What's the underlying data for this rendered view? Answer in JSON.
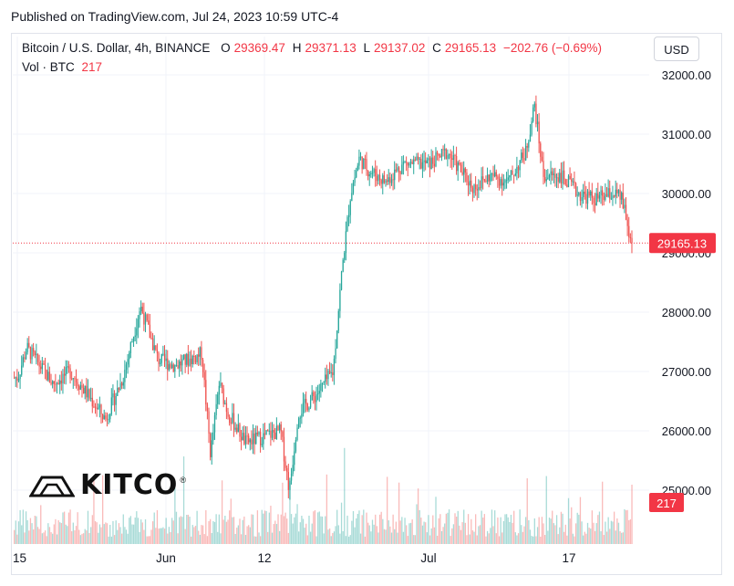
{
  "header": {
    "published": "Published on TradingView.com, Jul 24, 2023 10:59 UTC-4"
  },
  "legend": {
    "symbol": "Bitcoin / U.S. Dollar, 4h, BINANCE",
    "open_label": "O",
    "open": "29369.47",
    "high_label": "H",
    "high": "29371.13",
    "low_label": "L",
    "low": "29137.02",
    "close_label": "C",
    "close": "29165.13",
    "change": "−202.76 (−0.69%)",
    "vol_label": "Vol · BTC",
    "vol_value": "217"
  },
  "currency_button": "USD",
  "logo": {
    "text": "KITCO",
    "reg": "®"
  },
  "colors": {
    "up": "#26a69a",
    "down": "#ef5350",
    "price_line": "#f23645",
    "grid": "#f0f3fa"
  },
  "chart_data": {
    "type": "candlestick",
    "timeframe": "4h",
    "x_ticks": [
      "15",
      "Jun",
      "12",
      "Jul",
      "17"
    ],
    "y_ticks": [
      "25000.00",
      "26000.00",
      "27000.00",
      "28000.00",
      "29000.00",
      "30000.00",
      "31000.00",
      "32000.00"
    ],
    "ylim": [
      24700,
      32200
    ],
    "last_price": "29165.13",
    "last_volume": "217",
    "price_path": [
      {
        "date": "May 15",
        "price": 26900
      },
      {
        "date": "May 16",
        "price": 27400
      },
      {
        "date": "May 19",
        "price": 26800
      },
      {
        "date": "May 21",
        "price": 27000
      },
      {
        "date": "May 24",
        "price": 26400
      },
      {
        "date": "May 25",
        "price": 26200
      },
      {
        "date": "May 27",
        "price": 26900
      },
      {
        "date": "May 29",
        "price": 28100
      },
      {
        "date": "May 31",
        "price": 27200
      },
      {
        "date": "Jun 2",
        "price": 27100
      },
      {
        "date": "Jun 5",
        "price": 27300
      },
      {
        "date": "Jun 6",
        "price": 25600
      },
      {
        "date": "Jun 7",
        "price": 26800
      },
      {
        "date": "Jun 8",
        "price": 26300
      },
      {
        "date": "Jun 10",
        "price": 25800
      },
      {
        "date": "Jun 12",
        "price": 25900
      },
      {
        "date": "Jun 14",
        "price": 26000
      },
      {
        "date": "Jun 15",
        "price": 25000
      },
      {
        "date": "Jun 16",
        "price": 26300
      },
      {
        "date": "Jun 18",
        "price": 26600
      },
      {
        "date": "Jun 20",
        "price": 27000
      },
      {
        "date": "Jun 21",
        "price": 28700
      },
      {
        "date": "Jun 22",
        "price": 30000
      },
      {
        "date": "Jun 23",
        "price": 30600
      },
      {
        "date": "Jun 24",
        "price": 30400
      },
      {
        "date": "Jun 26",
        "price": 30200
      },
      {
        "date": "Jun 28",
        "price": 30500
      },
      {
        "date": "Jul 1",
        "price": 30500
      },
      {
        "date": "Jul 3",
        "price": 30700
      },
      {
        "date": "Jul 6",
        "price": 30100
      },
      {
        "date": "Jul 8",
        "price": 30300
      },
      {
        "date": "Jul 10",
        "price": 30200
      },
      {
        "date": "Jul 12",
        "price": 30700
      },
      {
        "date": "Jul 13",
        "price": 31500
      },
      {
        "date": "Jul 14",
        "price": 30300
      },
      {
        "date": "Jul 16",
        "price": 30300
      },
      {
        "date": "Jul 18",
        "price": 30000
      },
      {
        "date": "Jul 20",
        "price": 29900
      },
      {
        "date": "Jul 22",
        "price": 30000
      },
      {
        "date": "Jul 23",
        "price": 29900
      },
      {
        "date": "Jul 24",
        "price": 29165
      }
    ]
  }
}
